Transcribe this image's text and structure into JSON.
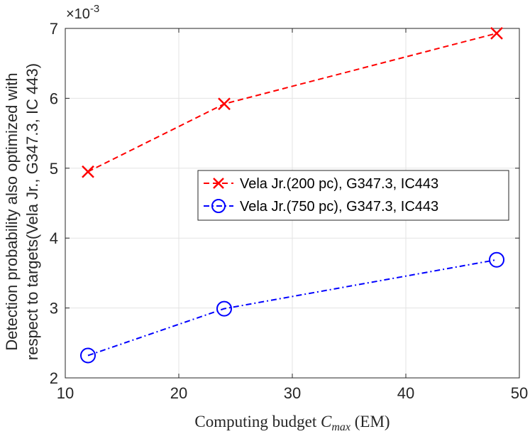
{
  "chart_data": {
    "type": "line",
    "x": [
      12,
      24,
      48
    ],
    "series": [
      {
        "name": "Vela Jr.(200 pc), G347.3, IC443",
        "values": [
          4.95,
          5.92,
          6.93
        ],
        "color": "#ff0000",
        "marker": "x",
        "line_style": "dashed"
      },
      {
        "name": "Vela Jr.(750 pc), G347.3, IC443",
        "values": [
          2.32,
          2.99,
          3.69
        ],
        "color": "#0000ff",
        "marker": "o",
        "line_style": "dash-dot"
      }
    ],
    "xlim": [
      10,
      50
    ],
    "ylim": [
      2,
      7
    ],
    "xticks": [
      "10",
      "20",
      "30",
      "40",
      "50"
    ],
    "yticks": [
      "2",
      "3",
      "4",
      "5",
      "6",
      "7"
    ],
    "y_exponent": {
      "base": "×10",
      "power": "-3"
    },
    "xlabel": {
      "prefix": "Computing budget ",
      "symbol": "C",
      "subscript": "max",
      "suffix": " (EM)"
    },
    "ylabel_lines": [
      "Detection probability also optimized with",
      "respect to targets(Vela Jr., G347.3, IC 443)"
    ],
    "grid": true,
    "legend_position": "center-right"
  }
}
